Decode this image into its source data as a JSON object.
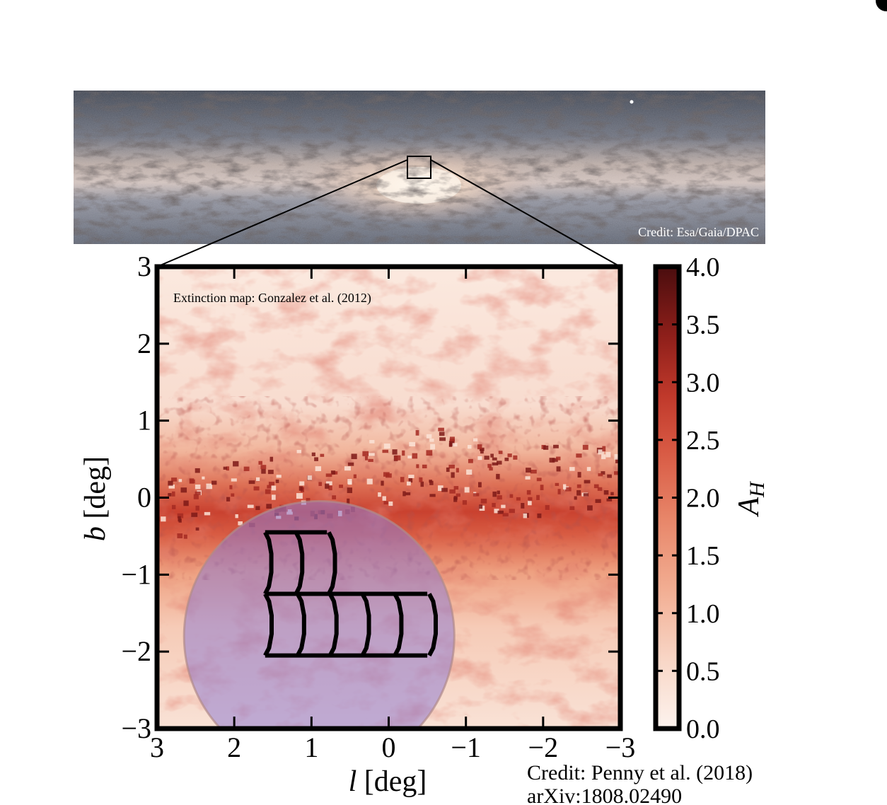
{
  "image_credit": "Credit: Esa/Gaia/DPAC",
  "map_credit": "Extinction map: Gonzalez et al. (2012)",
  "figure_credit_line1": "Credit: Penny et al. (2018)",
  "figure_credit_line2": "arXiv:1808.02490",
  "chart_data": {
    "type": "heatmap",
    "title": "",
    "xlabel_var": "l",
    "xlabel_unit": "[deg]",
    "ylabel_var": "b",
    "ylabel_unit": "[deg]",
    "xlim": [
      3,
      -3
    ],
    "ylim": [
      -3,
      3
    ],
    "x_ticks": [
      3,
      2,
      1,
      0,
      -1,
      -2,
      -3
    ],
    "x_tick_labels": [
      "3",
      "2",
      "1",
      "0",
      "−1",
      "−2",
      "−3"
    ],
    "y_ticks": [
      3,
      2,
      1,
      0,
      -1,
      -2,
      -3
    ],
    "y_tick_labels": [
      "3",
      "2",
      "1",
      "0",
      "−1",
      "−2",
      "−3"
    ],
    "colorbar": {
      "label_var": "A",
      "label_sub": "H",
      "range": [
        0.0,
        4.0
      ],
      "ticks": [
        0.0,
        0.5,
        1.0,
        1.5,
        2.0,
        2.5,
        3.0,
        3.5,
        4.0
      ],
      "tick_labels": [
        "0.0",
        "0.5",
        "1.0",
        "1.5",
        "2.0",
        "2.5",
        "3.0",
        "3.5",
        "4.0"
      ],
      "colors": [
        "#fdf3ee",
        "#f5c2aa",
        "#e8876a",
        "#cc4534",
        "#8e1f1a",
        "#4a0d0e"
      ]
    },
    "dust_lane": {
      "center_b": [
        {
          "l": 3.0,
          "b": -0.2
        },
        {
          "l": 2.0,
          "b": 0.1
        },
        {
          "l": 1.0,
          "b": 0.2
        },
        {
          "l": 0.5,
          "b": 0.3
        },
        {
          "l": -0.5,
          "b": 0.5
        },
        {
          "l": -1.5,
          "b": 0.2
        },
        {
          "l": -2.5,
          "b": 0.3
        },
        {
          "l": -3.0,
          "b": 0.2
        }
      ]
    },
    "survey_circle": {
      "center_l": 0.9,
      "center_b": -1.8,
      "radius": 1.75,
      "color": "#8f7ccf"
    },
    "fields": [
      {
        "row": "upper",
        "l_start": 1.6,
        "l_end": 0.8,
        "b_top": -0.45,
        "b_bottom": -1.25,
        "columns": 2
      },
      {
        "row": "lower",
        "l_start": 1.6,
        "l_end": -0.5,
        "b_top": -1.25,
        "b_bottom": -2.05,
        "columns": 5
      }
    ]
  }
}
